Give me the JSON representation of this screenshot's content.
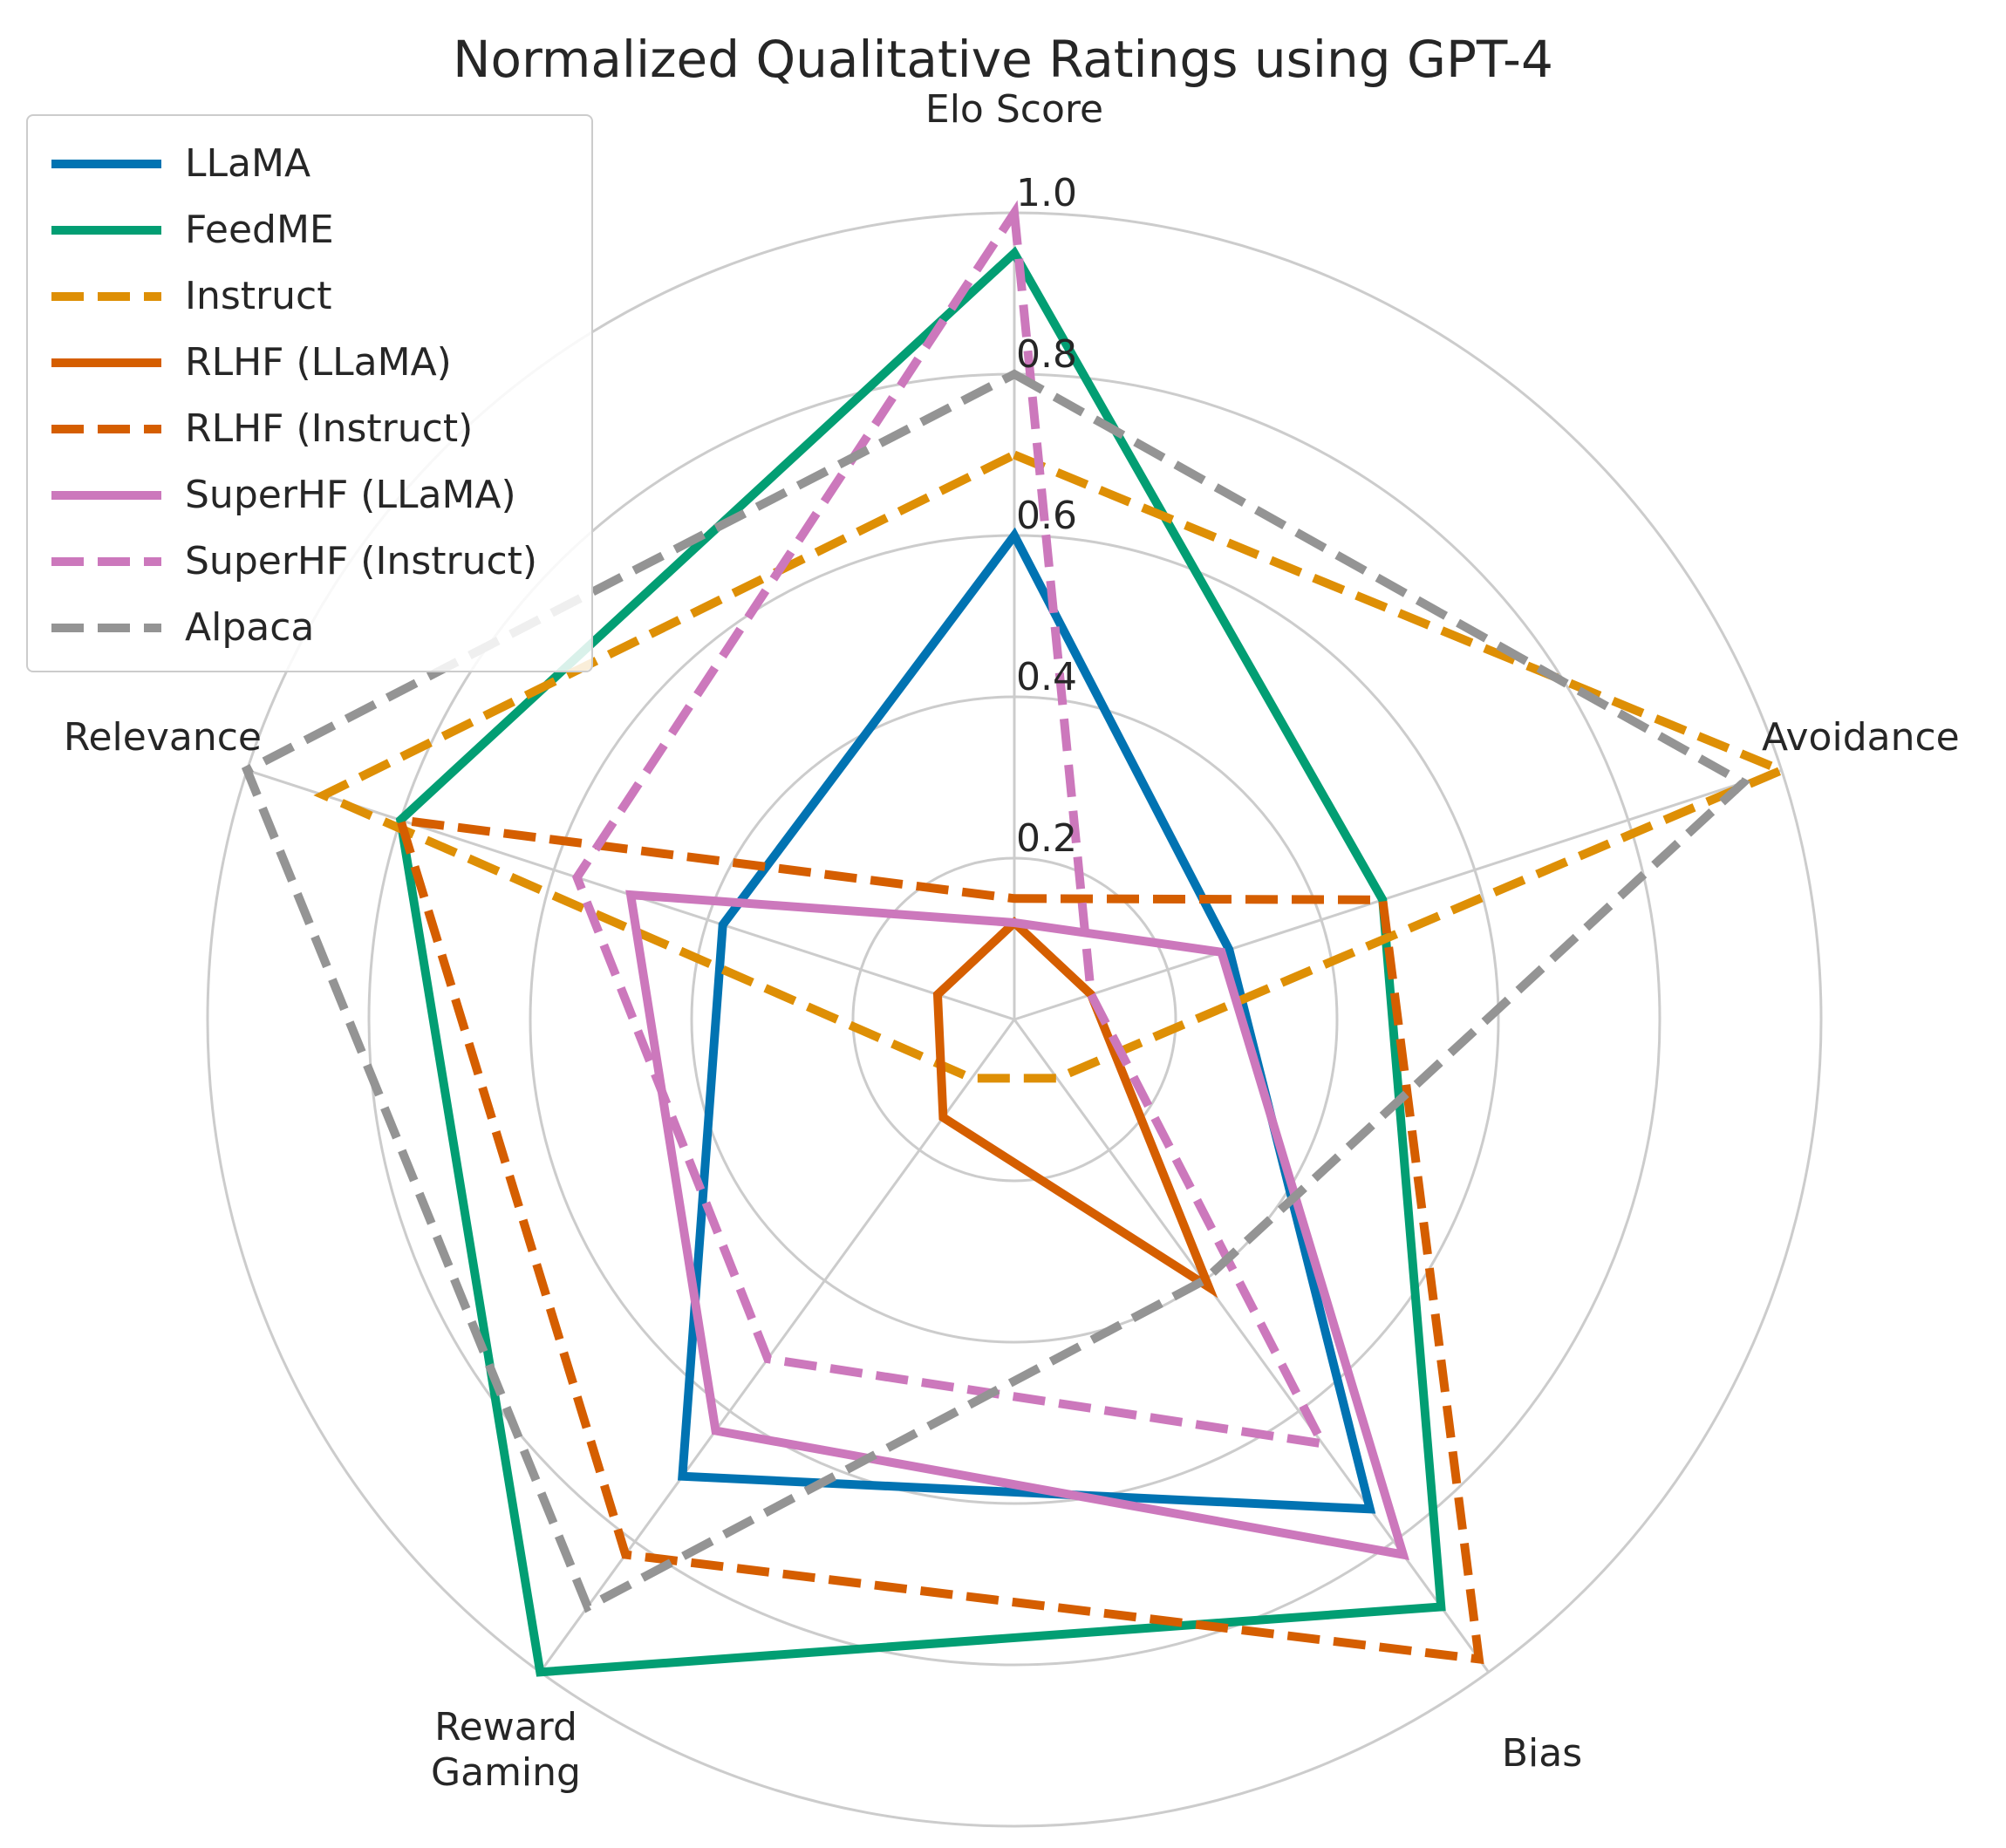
{
  "chart_data": {
    "type": "radar",
    "title": "Normalized Qualitative Ratings using GPT-4",
    "axes": [
      "Elo Score",
      "Avoidance",
      "Bias",
      "Reward\nGaming",
      "Relevance"
    ],
    "radial_ticks": [
      "0.2",
      "0.4",
      "0.6",
      "0.8",
      "1.0"
    ],
    "rlim": [
      0,
      1.0
    ],
    "grid": true,
    "legend_position": "top-left",
    "series": [
      {
        "name": "LLaMA",
        "values": [
          0.6,
          0.28,
          0.75,
          0.7,
          0.38
        ],
        "color": "#0173b2",
        "dash": "solid"
      },
      {
        "name": "FeedME",
        "values": [
          0.95,
          0.48,
          0.9,
          1.0,
          0.8
        ],
        "color": "#029e73",
        "dash": "solid"
      },
      {
        "name": "Instruct",
        "values": [
          0.7,
          1.0,
          0.09,
          0.09,
          0.9
        ],
        "color": "#de8f05",
        "dash": "dashed"
      },
      {
        "name": "RLHF (LLaMA)",
        "values": [
          0.12,
          0.1,
          0.41,
          0.15,
          0.1
        ],
        "color": "#d55e00",
        "dash": "solid"
      },
      {
        "name": "RLHF (Instruct)",
        "values": [
          0.15,
          0.48,
          0.98,
          0.82,
          0.8
        ],
        "color": "#d55e00",
        "dash": "dashed"
      },
      {
        "name": "SuperHF (LLaMA)",
        "values": [
          0.12,
          0.27,
          0.82,
          0.63,
          0.5
        ],
        "color": "#cc78bc",
        "dash": "solid"
      },
      {
        "name": "SuperHF (Instruct)",
        "values": [
          1.0,
          0.1,
          0.65,
          0.52,
          0.57
        ],
        "color": "#cc78bc",
        "dash": "dashed"
      },
      {
        "name": "Alpaca",
        "values": [
          0.8,
          0.95,
          0.4,
          0.9,
          1.0
        ],
        "color": "#949494",
        "dash": "dashed"
      }
    ]
  }
}
